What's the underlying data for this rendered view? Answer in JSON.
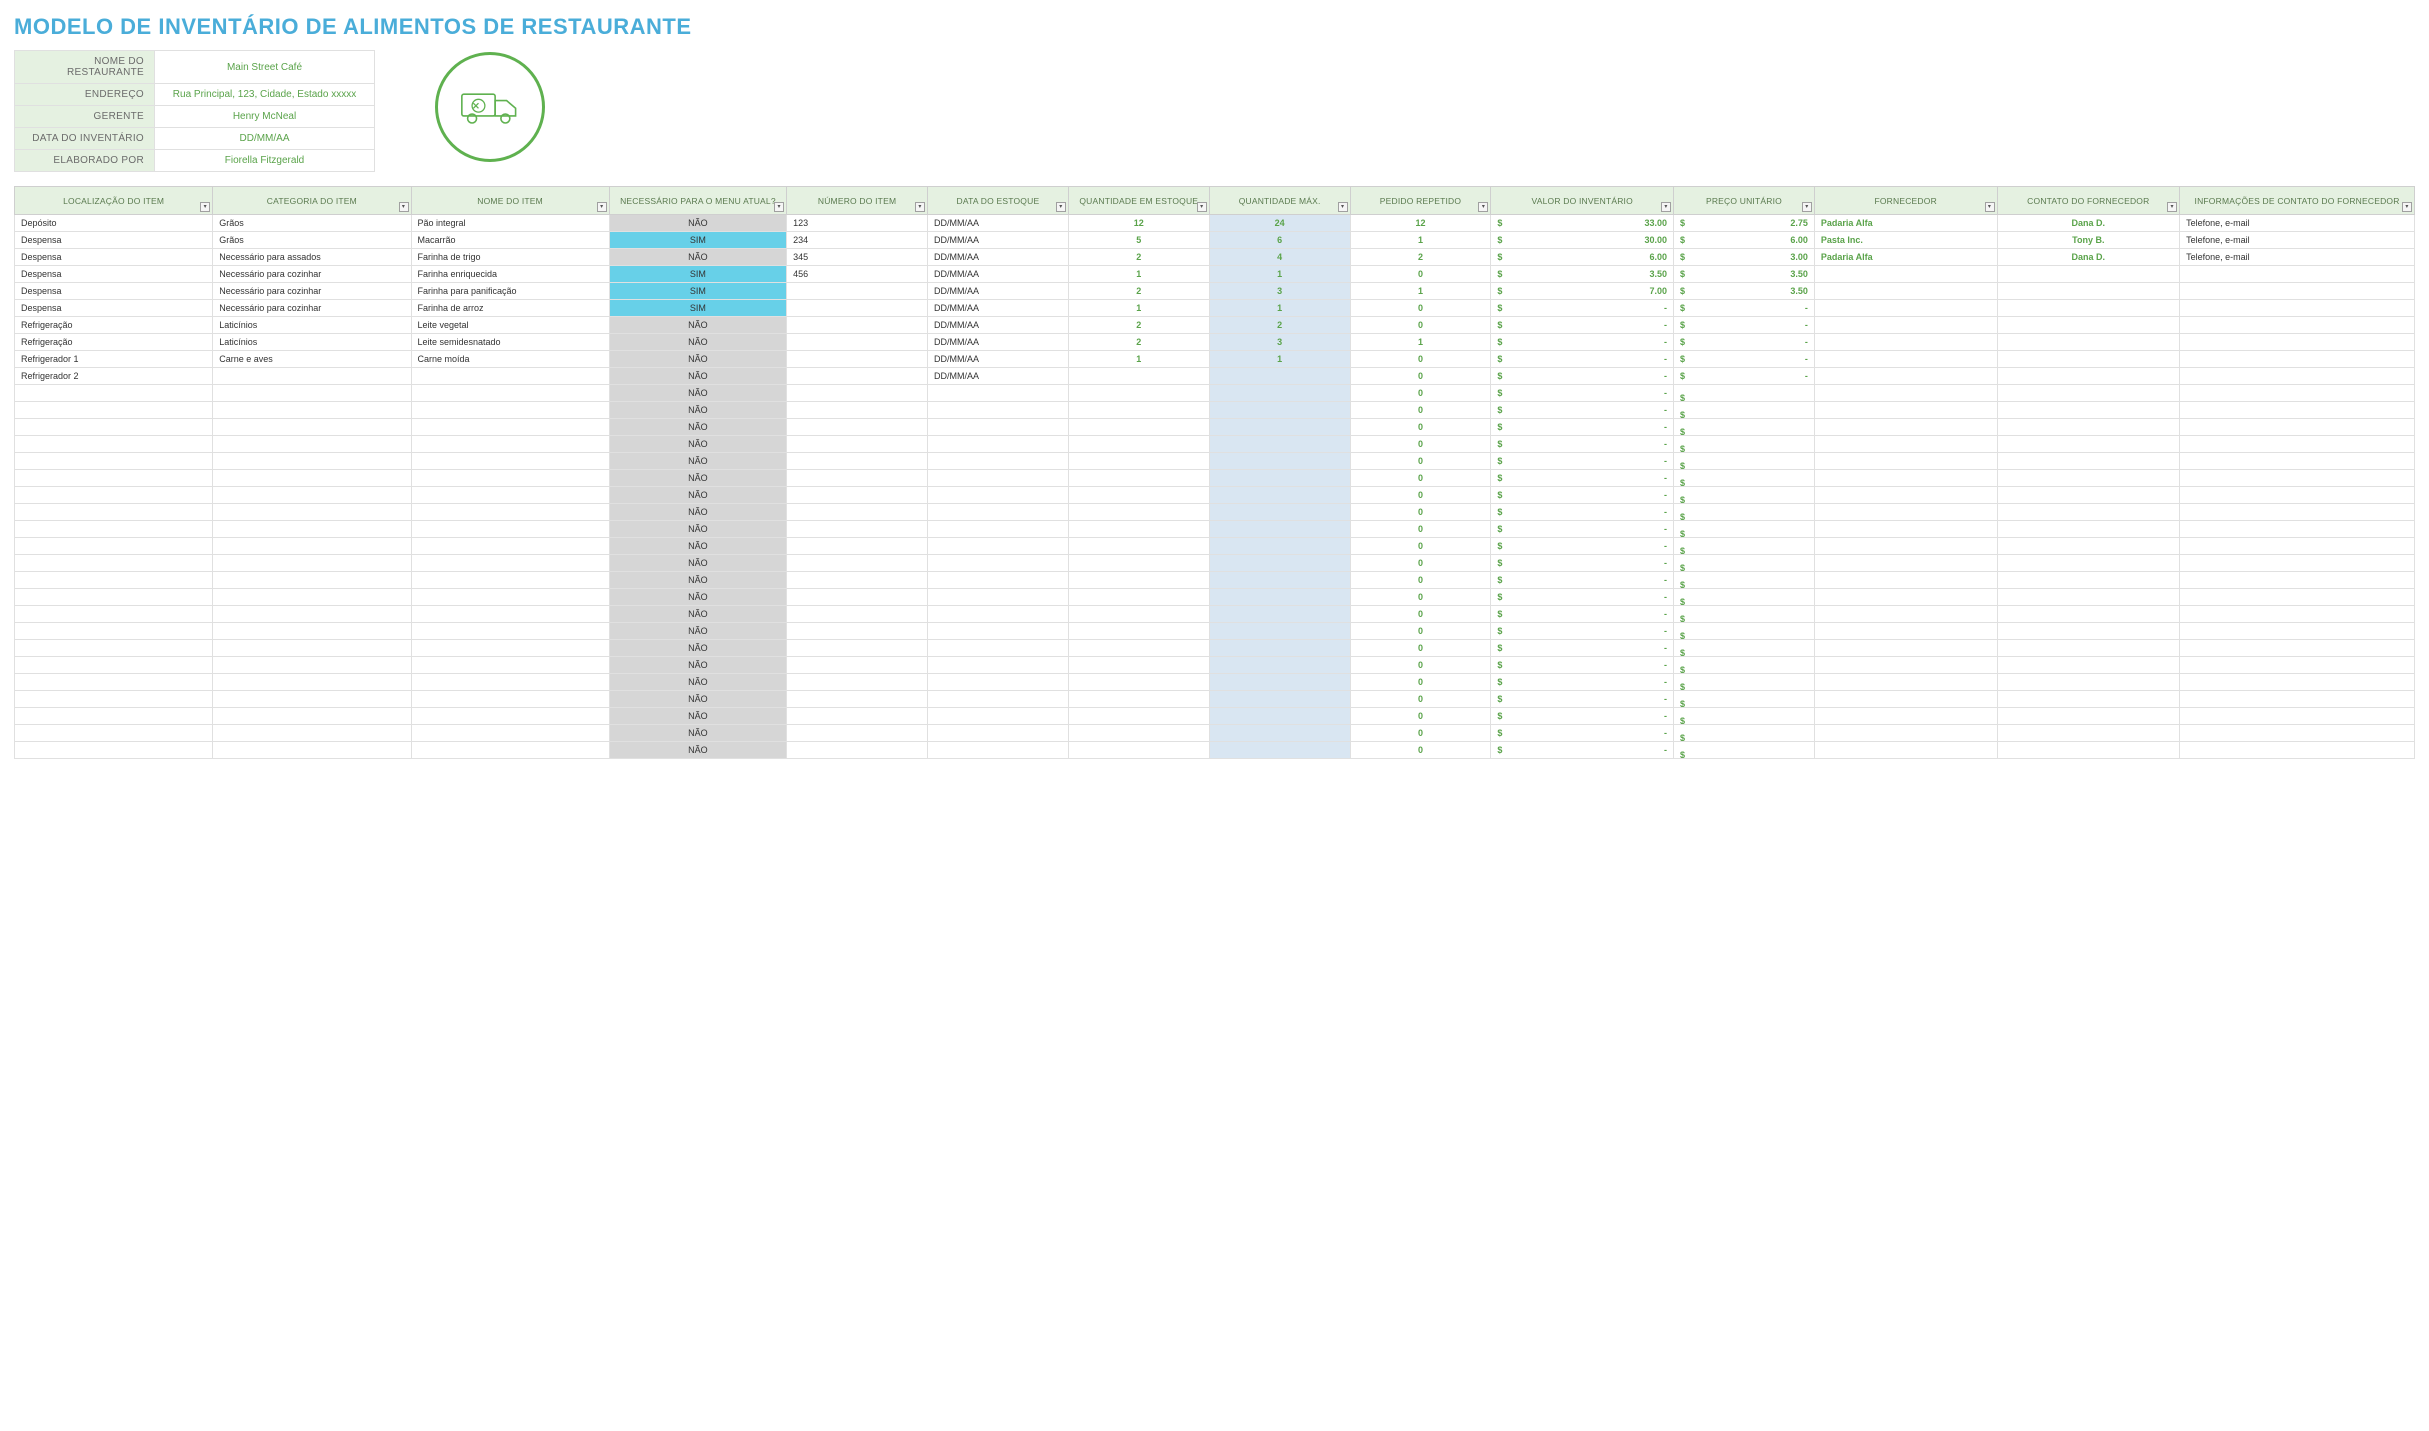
{
  "title": "MODELO DE INVENTÁRIO DE ALIMENTOS DE RESTAURANTE",
  "colors": {
    "title": "#4aadd9",
    "header_bg": "#e5f1e1",
    "header_text": "#5a7a4f",
    "info_value": "#5aa34a",
    "menu_no_bg": "#d6d6d6",
    "menu_yes_bg": "#67d0e8",
    "max_bg": "#d9e6f2",
    "green_text": "#5aa34a",
    "border": "#e0e0e0",
    "icon_stroke": "#5fb14f"
  },
  "info": {
    "rows": [
      {
        "label": "NOME DO RESTAURANTE",
        "value": "Main Street Café"
      },
      {
        "label": "ENDEREÇO",
        "value": "Rua Principal, 123, Cidade, Estado xxxxx"
      },
      {
        "label": "GERENTE",
        "value": "Henry McNeal"
      },
      {
        "label": "DATA DO INVENTÁRIO",
        "value": "DD/MM/AA"
      },
      {
        "label": "ELABORADO POR",
        "value": "Fiorella Fitzgerald"
      }
    ]
  },
  "columns": [
    {
      "key": "loc",
      "label": "LOCALIZAÇÃO DO ITEM",
      "width": "7.6%"
    },
    {
      "key": "cat",
      "label": "CATEGORIA DO ITEM",
      "width": "7.6%"
    },
    {
      "key": "name",
      "label": "NOME DO ITEM",
      "width": "7.6%"
    },
    {
      "key": "menu",
      "label": "NECESSÁRIO PARA O MENU ATUAL?",
      "width": "6.8%"
    },
    {
      "key": "num",
      "label": "NÚMERO DO ITEM",
      "width": "5.4%"
    },
    {
      "key": "date",
      "label": "DATA DO ESTOQUE",
      "width": "5.4%"
    },
    {
      "key": "qty",
      "label": "QUANTIDADE EM ESTOQUE",
      "width": "5.4%"
    },
    {
      "key": "max",
      "label": "QUANTIDADE MÁX.",
      "width": "5.4%"
    },
    {
      "key": "reorder",
      "label": "PEDIDO REPETIDO",
      "width": "5.4%"
    },
    {
      "key": "invval",
      "label": "VALOR DO INVENTÁRIO",
      "width": "7.0%"
    },
    {
      "key": "unit",
      "label": "PREÇO UNITÁRIO",
      "width": "5.4%"
    },
    {
      "key": "vendor",
      "label": "FORNECEDOR",
      "width": "7.0%"
    },
    {
      "key": "vcontact",
      "label": "CONTATO DO FORNECEDOR",
      "width": "7.0%"
    },
    {
      "key": "vinfo",
      "label": "INFORMAÇÕES DE CONTATO DO FORNECEDOR",
      "width": "9.0%"
    }
  ],
  "menu_labels": {
    "yes": "SIM",
    "no": "NÃO"
  },
  "rows": [
    {
      "loc": "Depósito",
      "cat": "Grãos",
      "name": "Pão integral",
      "menu": "NÃO",
      "num": "123",
      "date": "DD/MM/AA",
      "qty": "12",
      "max": "24",
      "reorder": "12",
      "invval": "33.00",
      "unit": "2.75",
      "vendor": "Padaria Alfa",
      "vcontact": "Dana D.",
      "vinfo": "Telefone, e-mail"
    },
    {
      "loc": "Despensa",
      "cat": "Grãos",
      "name": "Macarrão",
      "menu": "SIM",
      "num": "234",
      "date": "DD/MM/AA",
      "qty": "5",
      "max": "6",
      "reorder": "1",
      "invval": "30.00",
      "unit": "6.00",
      "vendor": "Pasta Inc.",
      "vcontact": "Tony B.",
      "vinfo": "Telefone, e-mail"
    },
    {
      "loc": "Despensa",
      "cat": "Necessário para assados",
      "name": "Farinha de trigo",
      "menu": "NÃO",
      "num": "345",
      "date": "DD/MM/AA",
      "qty": "2",
      "max": "4",
      "reorder": "2",
      "invval": "6.00",
      "unit": "3.00",
      "vendor": "Padaria Alfa",
      "vcontact": "Dana D.",
      "vinfo": "Telefone, e-mail"
    },
    {
      "loc": "Despensa",
      "cat": "Necessário para cozinhar",
      "name": "Farinha enriquecida",
      "menu": "SIM",
      "num": "456",
      "date": "DD/MM/AA",
      "qty": "1",
      "max": "1",
      "reorder": "0",
      "invval": "3.50",
      "unit": "3.50",
      "vendor": "",
      "vcontact": "",
      "vinfo": ""
    },
    {
      "loc": "Despensa",
      "cat": "Necessário para cozinhar",
      "name": "Farinha para panificação",
      "menu": "SIM",
      "num": "",
      "date": "DD/MM/AA",
      "qty": "2",
      "max": "3",
      "reorder": "1",
      "invval": "7.00",
      "unit": "3.50",
      "vendor": "",
      "vcontact": "",
      "vinfo": ""
    },
    {
      "loc": "Despensa",
      "cat": "Necessário para cozinhar",
      "name": "Farinha de arroz",
      "menu": "SIM",
      "num": "",
      "date": "DD/MM/AA",
      "qty": "1",
      "max": "1",
      "reorder": "0",
      "invval": "-",
      "unit": "-",
      "vendor": "",
      "vcontact": "",
      "vinfo": ""
    },
    {
      "loc": "Refrigeração",
      "cat": "Laticínios",
      "name": "Leite vegetal",
      "menu": "NÃO",
      "num": "",
      "date": "DD/MM/AA",
      "qty": "2",
      "max": "2",
      "reorder": "0",
      "invval": "-",
      "unit": "-",
      "vendor": "",
      "vcontact": "",
      "vinfo": ""
    },
    {
      "loc": "Refrigeração",
      "cat": "Laticínios",
      "name": "Leite semidesnatado",
      "menu": "NÃO",
      "num": "",
      "date": "DD/MM/AA",
      "qty": "2",
      "max": "3",
      "reorder": "1",
      "invval": "-",
      "unit": "-",
      "vendor": "",
      "vcontact": "",
      "vinfo": ""
    },
    {
      "loc": "Refrigerador 1",
      "cat": "Carne e aves",
      "name": "Carne moída",
      "menu": "NÃO",
      "num": "",
      "date": "DD/MM/AA",
      "qty": "1",
      "max": "1",
      "reorder": "0",
      "invval": "-",
      "unit": "-",
      "vendor": "",
      "vcontact": "",
      "vinfo": ""
    },
    {
      "loc": "Refrigerador 2",
      "cat": "",
      "name": "",
      "menu": "NÃO",
      "num": "",
      "date": "DD/MM/AA",
      "qty": "",
      "max": "",
      "reorder": "0",
      "invval": "-",
      "unit": "-",
      "vendor": "",
      "vcontact": "",
      "vinfo": ""
    }
  ],
  "empty_row_count": 22,
  "empty_row": {
    "loc": "",
    "cat": "",
    "name": "",
    "menu": "NÃO",
    "num": "",
    "date": "",
    "qty": "",
    "max": "",
    "reorder": "0",
    "invval": "-",
    "unit": "",
    "vendor": "",
    "vcontact": "",
    "vinfo": ""
  }
}
